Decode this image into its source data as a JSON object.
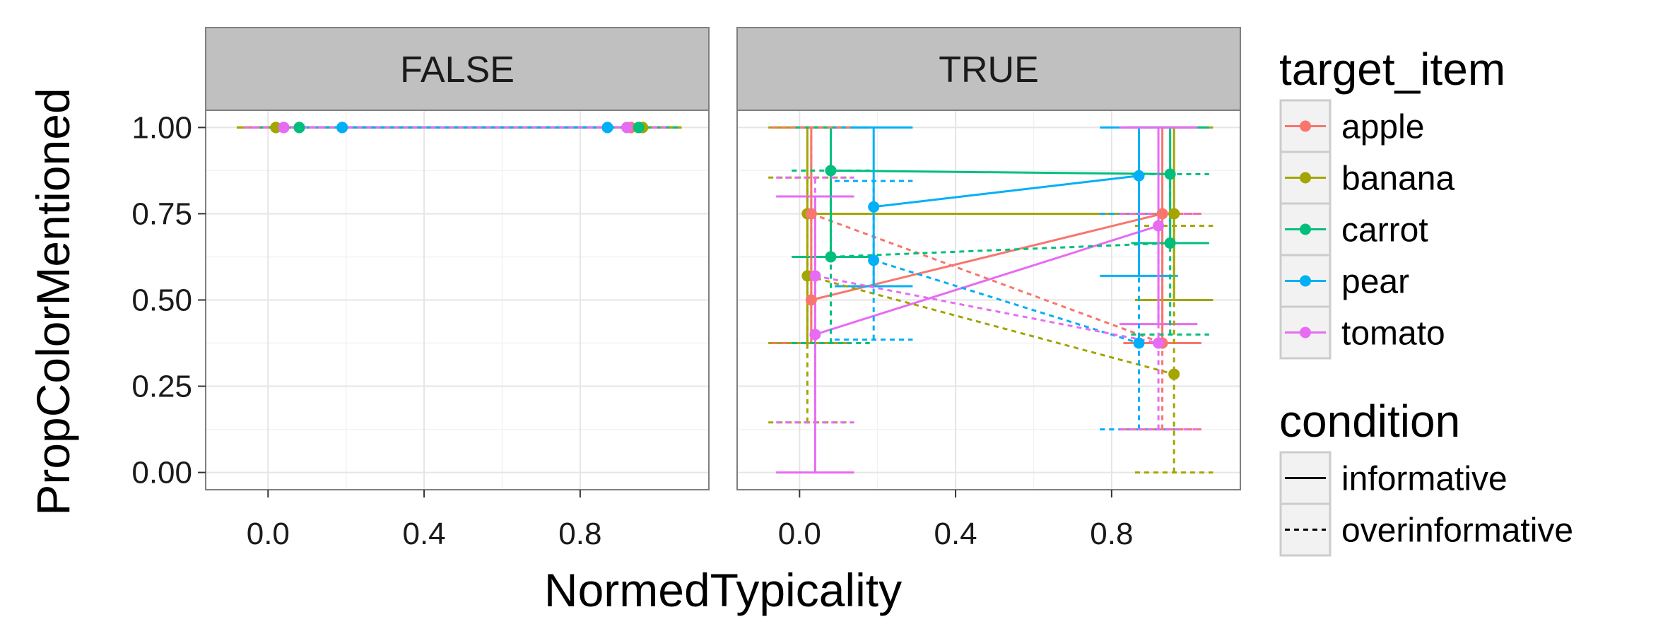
{
  "chart_data": {
    "type": "line",
    "xlabel": "NormedTypicality",
    "ylabel": "PropColorMentioned",
    "xlim": [
      -0.16,
      1.13
    ],
    "ylim": [
      -0.05,
      1.05
    ],
    "xticks": [
      "0.0",
      "0.4",
      "0.8"
    ],
    "xtick_values": [
      0.0,
      0.4,
      0.8
    ],
    "yticks": [
      "0.00",
      "0.25",
      "0.50",
      "0.75",
      "1.00"
    ],
    "ytick_values": [
      0.0,
      0.25,
      0.5,
      0.75,
      1.0
    ],
    "grid": true,
    "legend_position": "right",
    "colors": {
      "apple": "#F8766D",
      "banana": "#A3A500",
      "carrot": "#00BF7D",
      "pear": "#00B0F6",
      "tomato": "#E76BF3"
    },
    "legend": {
      "color": {
        "title": "target_item",
        "items": [
          "apple",
          "banana",
          "carrot",
          "pear",
          "tomato"
        ]
      },
      "linetype": {
        "title": "condition",
        "items": [
          "informative",
          "overinformative"
        ]
      }
    },
    "facets": [
      {
        "label": "FALSE",
        "series": [
          {
            "target_item": "apple",
            "condition": "informative",
            "points": [
              {
                "x": 0.04,
                "y": 1.0,
                "ymin": 1.0,
                "ymax": 1.0
              },
              {
                "x": 0.93,
                "y": 1.0,
                "ymin": 1.0,
                "ymax": 1.0
              }
            ]
          },
          {
            "target_item": "banana",
            "condition": "informative",
            "points": [
              {
                "x": 0.02,
                "y": 1.0,
                "ymin": 1.0,
                "ymax": 1.0
              },
              {
                "x": 0.96,
                "y": 1.0,
                "ymin": 1.0,
                "ymax": 1.0
              }
            ]
          },
          {
            "target_item": "carrot",
            "condition": "informative",
            "points": [
              {
                "x": 0.08,
                "y": 1.0,
                "ymin": 1.0,
                "ymax": 1.0
              },
              {
                "x": 0.95,
                "y": 1.0,
                "ymin": 1.0,
                "ymax": 1.0
              }
            ]
          },
          {
            "target_item": "pear",
            "condition": "informative",
            "points": [
              {
                "x": 0.19,
                "y": 1.0,
                "ymin": 1.0,
                "ymax": 1.0
              },
              {
                "x": 0.87,
                "y": 1.0,
                "ymin": 1.0,
                "ymax": 1.0
              }
            ]
          },
          {
            "target_item": "tomato",
            "condition": "informative",
            "points": [
              {
                "x": 0.04,
                "y": 1.0,
                "ymin": 1.0,
                "ymax": 1.0
              },
              {
                "x": 0.92,
                "y": 1.0,
                "ymin": 1.0,
                "ymax": 1.0
              }
            ]
          },
          {
            "target_item": "apple",
            "condition": "overinformative",
            "points": [
              {
                "x": 0.04,
                "y": 1.0,
                "ymin": 1.0,
                "ymax": 1.0
              },
              {
                "x": 0.93,
                "y": 1.0,
                "ymin": 1.0,
                "ymax": 1.0
              }
            ]
          },
          {
            "target_item": "banana",
            "condition": "overinformative",
            "points": [
              {
                "x": 0.02,
                "y": 1.0,
                "ymin": 1.0,
                "ymax": 1.0
              },
              {
                "x": 0.96,
                "y": 1.0,
                "ymin": 1.0,
                "ymax": 1.0
              }
            ]
          },
          {
            "target_item": "carrot",
            "condition": "overinformative",
            "points": [
              {
                "x": 0.08,
                "y": 1.0,
                "ymin": 1.0,
                "ymax": 1.0
              },
              {
                "x": 0.95,
                "y": 1.0,
                "ymin": 1.0,
                "ymax": 1.0
              }
            ]
          },
          {
            "target_item": "pear",
            "condition": "overinformative",
            "points": [
              {
                "x": 0.19,
                "y": 1.0,
                "ymin": 1.0,
                "ymax": 1.0
              },
              {
                "x": 0.87,
                "y": 1.0,
                "ymin": 1.0,
                "ymax": 1.0
              }
            ]
          },
          {
            "target_item": "tomato",
            "condition": "overinformative",
            "points": [
              {
                "x": 0.04,
                "y": 1.0,
                "ymin": 1.0,
                "ymax": 1.0
              },
              {
                "x": 0.92,
                "y": 1.0,
                "ymin": 1.0,
                "ymax": 1.0
              }
            ]
          }
        ]
      },
      {
        "label": "TRUE",
        "series": [
          {
            "target_item": "apple",
            "condition": "informative",
            "points": [
              {
                "x": 0.03,
                "y": 0.5,
                "ymin": 0.375,
                "ymax": 1.0
              },
              {
                "x": 0.93,
                "y": 0.75,
                "ymin": 0.375,
                "ymax": 1.0
              }
            ]
          },
          {
            "target_item": "banana",
            "condition": "informative",
            "points": [
              {
                "x": 0.02,
                "y": 0.75,
                "ymin": 0.375,
                "ymax": 1.0
              },
              {
                "x": 0.96,
                "y": 0.75,
                "ymin": 0.5,
                "ymax": 1.0
              }
            ]
          },
          {
            "target_item": "carrot",
            "condition": "informative",
            "points": [
              {
                "x": 0.08,
                "y": 0.875,
                "ymin": 0.625,
                "ymax": 1.0
              },
              {
                "x": 0.95,
                "y": 0.865,
                "ymin": 0.665,
                "ymax": 1.0
              }
            ]
          },
          {
            "target_item": "pear",
            "condition": "informative",
            "points": [
              {
                "x": 0.19,
                "y": 0.77,
                "ymin": 0.54,
                "ymax": 1.0
              },
              {
                "x": 0.87,
                "y": 0.86,
                "ymin": 0.57,
                "ymax": 1.0
              }
            ]
          },
          {
            "target_item": "tomato",
            "condition": "informative",
            "points": [
              {
                "x": 0.04,
                "y": 0.4,
                "ymin": 0.0,
                "ymax": 0.8
              },
              {
                "x": 0.92,
                "y": 0.715,
                "ymin": 0.43,
                "ymax": 1.0
              }
            ]
          },
          {
            "target_item": "apple",
            "condition": "overinformative",
            "points": [
              {
                "x": 0.03,
                "y": 0.75,
                "ymin": 0.375,
                "ymax": 1.0
              },
              {
                "x": 0.93,
                "y": 0.375,
                "ymin": 0.125,
                "ymax": 0.75
              }
            ]
          },
          {
            "target_item": "banana",
            "condition": "overinformative",
            "points": [
              {
                "x": 0.02,
                "y": 0.57,
                "ymin": 0.145,
                "ymax": 0.855
              },
              {
                "x": 0.96,
                "y": 0.285,
                "ymin": 0.0,
                "ymax": 0.715
              }
            ]
          },
          {
            "target_item": "carrot",
            "condition": "overinformative",
            "points": [
              {
                "x": 0.08,
                "y": 0.625,
                "ymin": 0.375,
                "ymax": 0.875
              },
              {
                "x": 0.95,
                "y": 0.665,
                "ymin": 0.4,
                "ymax": 0.865
              }
            ]
          },
          {
            "target_item": "pear",
            "condition": "overinformative",
            "points": [
              {
                "x": 0.19,
                "y": 0.615,
                "ymin": 0.385,
                "ymax": 0.845
              },
              {
                "x": 0.87,
                "y": 0.375,
                "ymin": 0.125,
                "ymax": 0.75
              }
            ]
          },
          {
            "target_item": "tomato",
            "condition": "overinformative",
            "points": [
              {
                "x": 0.04,
                "y": 0.57,
                "ymin": 0.145,
                "ymax": 0.855
              },
              {
                "x": 0.92,
                "y": 0.375,
                "ymin": 0.125,
                "ymax": 0.75
              }
            ]
          }
        ]
      }
    ]
  }
}
